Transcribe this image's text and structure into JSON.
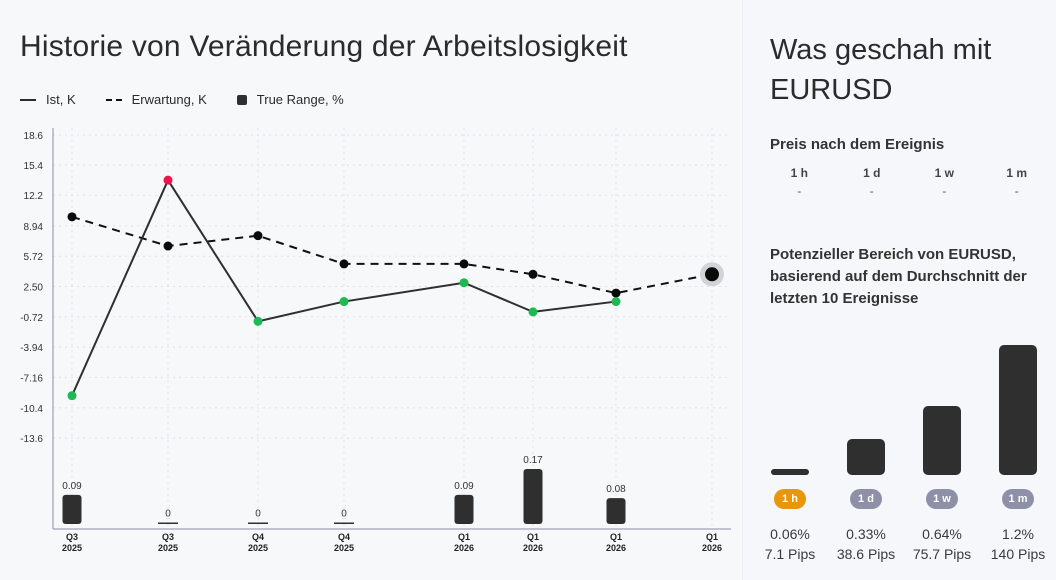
{
  "left_panel": {
    "title": "Historie von Veränderung der Arbeitslosigkeit",
    "legend": [
      {
        "label": "Ist, K",
        "style": "solid"
      },
      {
        "label": "Erwartung, K",
        "style": "dashed"
      },
      {
        "label": "True Range, %",
        "style": "box"
      }
    ]
  },
  "chart_data": {
    "type": "line",
    "title": "Historie von Veränderung der Arbeitslosigkeit",
    "xlabel": "",
    "ylabel": "",
    "categories": [
      "Q3 2025",
      "Q3 2025",
      "Q4 2025",
      "Q4 2025",
      "Q1 2026",
      "Q1 2026",
      "Q1 2026",
      "Q1 2026"
    ],
    "x_ticks": [
      {
        "q": "Q3",
        "y": "2025"
      },
      {
        "q": "Q3",
        "y": "2025"
      },
      {
        "q": "Q4",
        "y": "2025"
      },
      {
        "q": "Q4",
        "y": "2025"
      },
      {
        "q": "Q1",
        "y": "2026"
      },
      {
        "q": "Q1",
        "y": "2026"
      },
      {
        "q": "Q1",
        "y": "2026"
      },
      {
        "q": "Q1",
        "y": "2026"
      }
    ],
    "y_ticks": [
      "18.6",
      "15.4",
      "12.2",
      "8.94",
      "5.72",
      "2.50",
      "-0.72",
      "-3.94",
      "-7.16",
      "-10.4",
      "-13.6"
    ],
    "ylim": [
      -13.6,
      18.6
    ],
    "grid": true,
    "legend_position": "top-left",
    "series": [
      {
        "name": "Ist, K",
        "style": "solid",
        "values": [
          -9.1,
          13.8,
          -1.2,
          0.9,
          2.9,
          -0.2,
          0.9,
          null
        ],
        "point_colors": [
          "#1db954",
          "#f0124a",
          "#1db954",
          "#1db954",
          "#1db954",
          "#1db954",
          "#1db954",
          null
        ]
      },
      {
        "name": "Erwartung, K",
        "style": "dashed",
        "values": [
          9.9,
          6.8,
          7.9,
          4.9,
          4.9,
          3.8,
          1.8,
          3.8
        ]
      },
      {
        "name": "True Range, %",
        "type": "bar",
        "values": [
          0.09,
          0,
          0,
          0,
          0.09,
          0.17,
          0.08,
          null
        ],
        "labels": [
          "0.09",
          "0",
          "0",
          "0",
          "0.09",
          "0.17",
          "0.08",
          ""
        ]
      }
    ],
    "highlight_last_point": true
  },
  "right_panel": {
    "title": "Was geschah mit EURUSD",
    "price_after_heading": "Preis nach dem Ereignis",
    "price_after": [
      {
        "label": "1 h",
        "value": "-"
      },
      {
        "label": "1 d",
        "value": "-"
      },
      {
        "label": "1 w",
        "value": "-"
      },
      {
        "label": "1 m",
        "value": "-"
      }
    ],
    "range_heading": "Potenzieller Bereich von EURUSD, basierend auf dem Durchschnitt der letzten 10 Ereignisse",
    "range": [
      {
        "label": "1 h",
        "percent": "0.06%",
        "pips": "7.1 Pips",
        "value_pct": 0.06,
        "active": true
      },
      {
        "label": "1 d",
        "percent": "0.33%",
        "pips": "38.6 Pips",
        "value_pct": 0.33,
        "active": false
      },
      {
        "label": "1 w",
        "percent": "0.64%",
        "pips": "75.7 Pips",
        "value_pct": 0.64,
        "active": false
      },
      {
        "label": "1 m",
        "percent": "1.2%",
        "pips": "140 Pips",
        "value_pct": 1.2,
        "active": false
      }
    ],
    "colors": {
      "active_pill": "#e8960a",
      "inactive_pill": "#8e90a8",
      "bar": "#2f2f2f"
    }
  }
}
